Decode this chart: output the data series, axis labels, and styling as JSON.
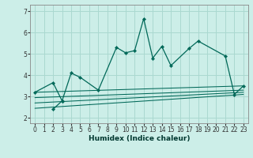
{
  "title": "",
  "xlabel": "Humidex (Indice chaleur)",
  "background_color": "#cceee8",
  "grid_color": "#aad8d0",
  "line_color": "#006858",
  "x_values": [
    0,
    1,
    2,
    3,
    4,
    5,
    6,
    7,
    8,
    9,
    10,
    11,
    12,
    13,
    14,
    15,
    16,
    17,
    18,
    19,
    20,
    21,
    22,
    23
  ],
  "series_main": [
    3.2,
    null,
    3.65,
    2.8,
    4.1,
    3.9,
    null,
    3.3,
    null,
    5.3,
    5.05,
    5.15,
    6.65,
    4.8,
    5.35,
    4.45,
    null,
    5.25,
    5.6,
    null,
    null,
    4.9,
    3.1,
    3.5
  ],
  "series_low": [
    null,
    null,
    2.4,
    2.8,
    null,
    null,
    null,
    null,
    null,
    null,
    null,
    null,
    null,
    null,
    null,
    null,
    null,
    null,
    null,
    null,
    null,
    null,
    null,
    null
  ],
  "trend_lines": [
    {
      "x": [
        0,
        23
      ],
      "y": [
        3.2,
        3.5
      ]
    },
    {
      "x": [
        0,
        23
      ],
      "y": [
        2.95,
        3.3
      ]
    },
    {
      "x": [
        0,
        23
      ],
      "y": [
        2.7,
        3.2
      ]
    },
    {
      "x": [
        0,
        23
      ],
      "y": [
        2.45,
        3.1
      ]
    }
  ],
  "ylim": [
    1.75,
    7.3
  ],
  "xlim": [
    -0.5,
    23.5
  ],
  "yticks": [
    2,
    3,
    4,
    5,
    6,
    7
  ],
  "xticks": [
    0,
    1,
    2,
    3,
    4,
    5,
    6,
    7,
    8,
    9,
    10,
    11,
    12,
    13,
    14,
    15,
    16,
    17,
    18,
    19,
    20,
    21,
    22,
    23
  ],
  "xlabel_fontsize": 6.5,
  "tick_fontsize": 5.5
}
